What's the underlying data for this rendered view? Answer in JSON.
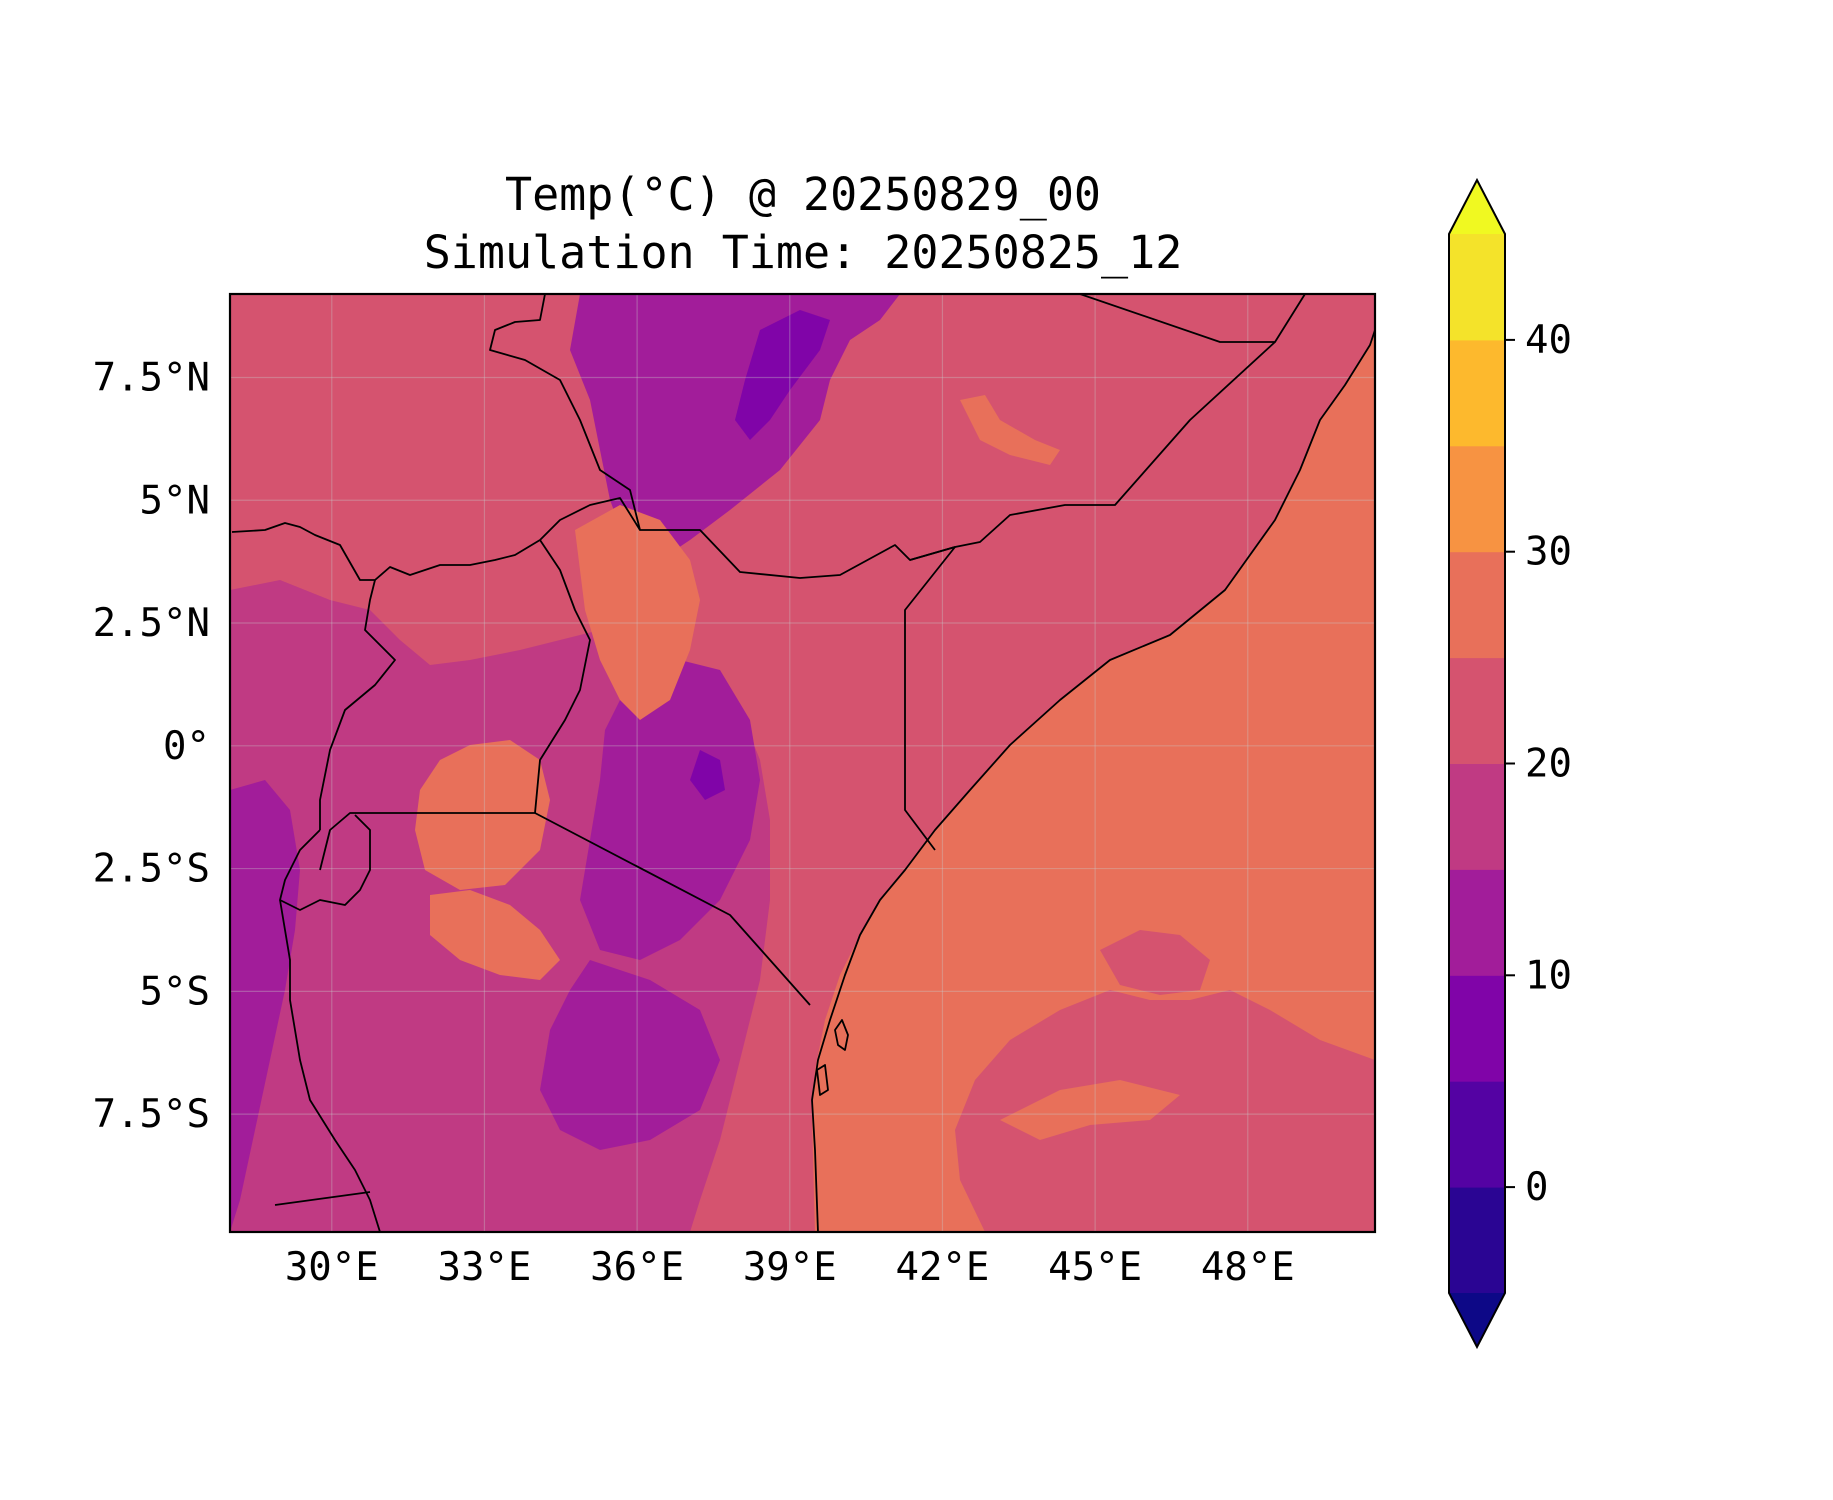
{
  "figure": {
    "title_line1": "Temp(°C) @ 20250829_00",
    "title_line2": "Simulation Time: 20250825_12"
  },
  "map": {
    "projection": "PlateCarree",
    "lon_range": [
      28,
      50.5
    ],
    "lat_range": [
      -9.9,
      9.2
    ],
    "lon_ticks": [
      {
        "value": 30,
        "label": "30°E"
      },
      {
        "value": 33,
        "label": "33°E"
      },
      {
        "value": 36,
        "label": "36°E"
      },
      {
        "value": 39,
        "label": "39°E"
      },
      {
        "value": 42,
        "label": "42°E"
      },
      {
        "value": 45,
        "label": "45°E"
      },
      {
        "value": 48,
        "label": "48°E"
      }
    ],
    "lat_ticks": [
      {
        "value": 7.5,
        "label": "7.5°N"
      },
      {
        "value": 5,
        "label": "5°N"
      },
      {
        "value": 2.5,
        "label": "2.5°N"
      },
      {
        "value": 0,
        "label": "0°"
      },
      {
        "value": -2.5,
        "label": "2.5°S"
      },
      {
        "value": -5,
        "label": "5°S"
      },
      {
        "value": -7.5,
        "label": "7.5°S"
      }
    ],
    "gridlines": true,
    "field": "temperature",
    "units": "°C",
    "region": "East Africa"
  },
  "colorbar": {
    "colormap": "plasma",
    "extend": "both",
    "range": [
      -5,
      45
    ],
    "tick_labels": [
      {
        "value": 0,
        "label": "0"
      },
      {
        "value": 10,
        "label": "10"
      },
      {
        "value": 20,
        "label": "20"
      },
      {
        "value": 30,
        "label": "30"
      },
      {
        "value": 40,
        "label": "40"
      }
    ],
    "bins": [
      {
        "from": -5,
        "to": 0,
        "color": "#2a0593"
      },
      {
        "from": 0,
        "to": 5,
        "color": "#5402a3"
      },
      {
        "from": 5,
        "to": 10,
        "color": "#8004a8"
      },
      {
        "from": 10,
        "to": 15,
        "color": "#a21d9a"
      },
      {
        "from": 15,
        "to": 20,
        "color": "#c03a83"
      },
      {
        "from": 20,
        "to": 25,
        "color": "#d5536f"
      },
      {
        "from": 25,
        "to": 30,
        "color": "#e8705a"
      },
      {
        "from": 30,
        "to": 35,
        "color": "#f79342"
      },
      {
        "from": 35,
        "to": 40,
        "color": "#fdb92d"
      },
      {
        "from": 40,
        "to": 45,
        "color": "#f4e32a"
      }
    ],
    "under_color": "#0d0887",
    "over_color": "#f0f921"
  }
}
